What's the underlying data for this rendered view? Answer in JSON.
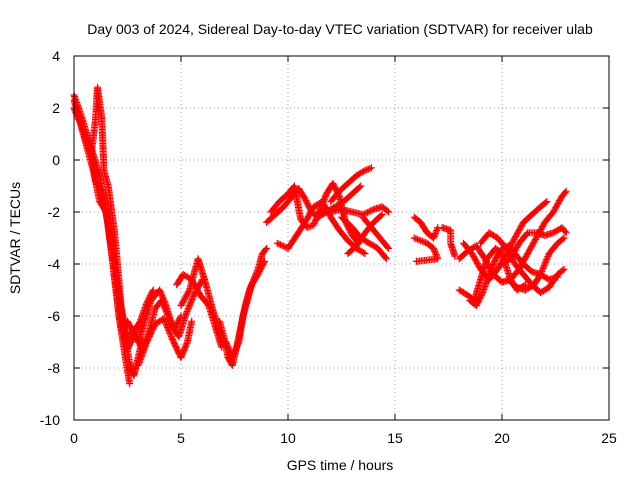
{
  "chart_data": {
    "type": "scatter",
    "title": "Day 003 of 2024, Sidereal Day-to-day VTEC variation (SDTVAR) for receiver ulab",
    "xlabel": "GPS time / hours",
    "ylabel": "SDTVAR / TECUs",
    "xlim": [
      0,
      25
    ],
    "ylim": [
      -10,
      4
    ],
    "xticks": [
      0,
      5,
      10,
      15,
      20,
      25
    ],
    "yticks": [
      -10,
      -8,
      -6,
      -4,
      -2,
      0,
      2,
      4
    ],
    "grid": true,
    "marker": "+",
    "color": "#ff0000",
    "series": [
      {
        "name": "SDTVAR",
        "tracks": [
          [
            [
              0.0,
              2.5
            ],
            [
              0.3,
              1.8
            ],
            [
              0.6,
              1.0
            ],
            [
              0.9,
              0.2
            ],
            [
              1.2,
              -0.6
            ],
            [
              1.5,
              -1.8
            ],
            [
              1.8,
              -3.5
            ],
            [
              2.1,
              -5.2
            ],
            [
              2.4,
              -6.8
            ],
            [
              2.6,
              -7.8
            ],
            [
              2.8,
              -8.3
            ],
            [
              3.0,
              -7.6
            ],
            [
              3.2,
              -6.9
            ]
          ],
          [
            [
              0.0,
              2.3
            ],
            [
              0.4,
              1.2
            ],
            [
              0.8,
              0.4
            ],
            [
              1.0,
              -0.8
            ],
            [
              1.3,
              -1.2
            ],
            [
              1.6,
              -2.5
            ],
            [
              1.9,
              -4.6
            ],
            [
              2.2,
              -6.5
            ],
            [
              2.5,
              -7.3
            ],
            [
              2.7,
              -6.9
            ],
            [
              3.0,
              -6.4
            ]
          ],
          [
            [
              0.5,
              0.9
            ],
            [
              0.8,
              0.2
            ],
            [
              1.0,
              1.5
            ],
            [
              1.1,
              2.8
            ],
            [
              1.3,
              1.6
            ],
            [
              1.4,
              -0.4
            ],
            [
              1.6,
              -1.0
            ],
            [
              1.9,
              -2.8
            ],
            [
              2.2,
              -5.6
            ],
            [
              2.5,
              -7.2
            ],
            [
              2.8,
              -6.6
            ],
            [
              3.1,
              -6.2
            ],
            [
              3.4,
              -5.5
            ],
            [
              3.7,
              -5.0
            ]
          ],
          [
            [
              0.0,
              2.0
            ],
            [
              0.3,
              1.4
            ],
            [
              0.6,
              0.5
            ],
            [
              0.9,
              -0.4
            ],
            [
              1.2,
              -1.6
            ],
            [
              1.5,
              -2.0
            ],
            [
              1.8,
              -3.8
            ],
            [
              2.1,
              -6.0
            ],
            [
              2.4,
              -7.6
            ],
            [
              2.6,
              -8.6
            ]
          ],
          [
            [
              2.5,
              -6.2
            ],
            [
              3.0,
              -7.0
            ],
            [
              3.3,
              -6.2
            ],
            [
              3.6,
              -5.4
            ],
            [
              4.0,
              -5.0
            ],
            [
              4.3,
              -5.6
            ],
            [
              4.6,
              -6.4
            ],
            [
              4.9,
              -6.8
            ],
            [
              5.2,
              -6.0
            ],
            [
              5.6,
              -5.2
            ],
            [
              6.0,
              -4.6
            ]
          ],
          [
            [
              2.6,
              -6.6
            ],
            [
              2.9,
              -6.8
            ],
            [
              3.2,
              -7.3
            ],
            [
              3.5,
              -6.6
            ],
            [
              3.8,
              -5.7
            ],
            [
              4.1,
              -5.4
            ],
            [
              4.4,
              -6.0
            ],
            [
              4.7,
              -6.5
            ],
            [
              5.0,
              -6.0
            ]
          ],
          [
            [
              3.0,
              -7.9
            ],
            [
              3.4,
              -7.0
            ],
            [
              3.8,
              -6.3
            ],
            [
              4.2,
              -6.1
            ],
            [
              4.6,
              -6.9
            ],
            [
              5.0,
              -7.6
            ],
            [
              5.3,
              -7.0
            ],
            [
              5.5,
              -6.2
            ]
          ],
          [
            [
              4.8,
              -4.8
            ],
            [
              5.1,
              -4.4
            ],
            [
              5.5,
              -4.6
            ],
            [
              5.9,
              -5.2
            ],
            [
              6.3,
              -5.6
            ],
            [
              6.6,
              -6.4
            ],
            [
              6.9,
              -7.2
            ]
          ],
          [
            [
              5.0,
              -5.6
            ],
            [
              5.4,
              -5.0
            ],
            [
              5.8,
              -3.8
            ],
            [
              6.1,
              -4.6
            ],
            [
              6.5,
              -5.8
            ],
            [
              6.8,
              -6.6
            ],
            [
              7.0,
              -7.0
            ]
          ],
          [
            [
              6.8,
              -6.2
            ],
            [
              7.0,
              -6.8
            ],
            [
              7.2,
              -7.6
            ],
            [
              7.4,
              -7.9
            ],
            [
              7.6,
              -7.2
            ],
            [
              7.8,
              -6.4
            ],
            [
              8.0,
              -5.6
            ],
            [
              8.2,
              -5.0
            ],
            [
              8.4,
              -4.6
            ],
            [
              8.6,
              -4.2
            ],
            [
              8.8,
              -3.6
            ],
            [
              9.0,
              -3.4
            ]
          ],
          [
            [
              7.1,
              -7.0
            ],
            [
              7.4,
              -7.6
            ],
            [
              7.7,
              -7.0
            ],
            [
              7.9,
              -6.0
            ],
            [
              8.1,
              -5.4
            ],
            [
              8.3,
              -4.8
            ],
            [
              8.6,
              -4.4
            ],
            [
              8.9,
              -3.9
            ]
          ],
          [
            [
              9.0,
              -2.4
            ],
            [
              9.4,
              -2.1
            ],
            [
              9.8,
              -1.8
            ],
            [
              10.2,
              -1.4
            ],
            [
              10.5,
              -1.1
            ],
            [
              10.8,
              -1.5
            ],
            [
              11.1,
              -2.0
            ],
            [
              11.4,
              -2.2
            ],
            [
              11.8,
              -2.0
            ],
            [
              12.2,
              -1.8
            ],
            [
              12.6,
              -1.6
            ],
            [
              13.0,
              -1.3
            ],
            [
              13.4,
              -1.0
            ]
          ],
          [
            [
              9.2,
              -2.0
            ],
            [
              9.6,
              -1.6
            ],
            [
              10.0,
              -1.3
            ],
            [
              10.3,
              -1.0
            ],
            [
              10.6,
              -2.3
            ],
            [
              10.9,
              -2.6
            ],
            [
              11.2,
              -2.5
            ],
            [
              11.5,
              -1.9
            ],
            [
              11.8,
              -1.3
            ],
            [
              12.1,
              -0.9
            ],
            [
              12.4,
              -1.4
            ],
            [
              12.7,
              -2.4
            ],
            [
              13.0,
              -2.9
            ],
            [
              13.3,
              -3.2
            ]
          ],
          [
            [
              9.5,
              -3.2
            ],
            [
              10.0,
              -3.4
            ],
            [
              10.4,
              -2.9
            ],
            [
              10.8,
              -2.4
            ],
            [
              11.2,
              -1.8
            ],
            [
              11.6,
              -1.6
            ],
            [
              12.0,
              -2.2
            ],
            [
              12.4,
              -2.7
            ],
            [
              12.8,
              -3.1
            ],
            [
              13.2,
              -3.4
            ],
            [
              13.6,
              -3.6
            ]
          ],
          [
            [
              11.5,
              -2.0
            ],
            [
              12.0,
              -2.0
            ],
            [
              12.5,
              -1.9
            ],
            [
              13.0,
              -2.0
            ],
            [
              13.5,
              -2.1
            ],
            [
              14.0,
              -1.9
            ],
            [
              14.4,
              -1.8
            ],
            [
              14.7,
              -2.0
            ]
          ],
          [
            [
              12.0,
              -1.6
            ],
            [
              12.4,
              -1.2
            ],
            [
              12.8,
              -0.9
            ],
            [
              13.2,
              -0.6
            ],
            [
              13.6,
              -0.4
            ],
            [
              13.9,
              -0.3
            ]
          ],
          [
            [
              12.5,
              -2.2
            ],
            [
              13.0,
              -2.6
            ],
            [
              13.4,
              -3.0
            ],
            [
              13.8,
              -3.2
            ],
            [
              14.2,
              -3.4
            ],
            [
              14.6,
              -3.8
            ]
          ],
          [
            [
              13.5,
              -2.2
            ],
            [
              13.9,
              -2.6
            ],
            [
              14.3,
              -3.0
            ],
            [
              14.7,
              -3.4
            ]
          ],
          [
            [
              12.8,
              -3.6
            ],
            [
              13.2,
              -3.3
            ],
            [
              13.6,
              -2.8
            ],
            [
              14.0,
              -2.4
            ],
            [
              14.4,
              -2.1
            ]
          ],
          [
            [
              15.9,
              -2.2
            ],
            [
              16.2,
              -2.4
            ],
            [
              16.5,
              -2.8
            ],
            [
              16.8,
              -3.0
            ],
            [
              17.0,
              -2.6
            ]
          ],
          [
            [
              15.9,
              -3.0
            ],
            [
              16.2,
              -3.1
            ],
            [
              16.5,
              -3.2
            ],
            [
              16.8,
              -3.4
            ],
            [
              17.0,
              -3.8
            ],
            [
              16.0,
              -3.9
            ]
          ],
          [
            [
              17.2,
              -2.6
            ],
            [
              17.6,
              -2.7
            ],
            [
              17.6,
              -3.2
            ],
            [
              17.8,
              -3.7
            ]
          ],
          [
            [
              18.0,
              -3.8
            ],
            [
              18.4,
              -3.5
            ],
            [
              18.8,
              -3.3
            ],
            [
              19.2,
              -3.8
            ],
            [
              19.6,
              -4.4
            ],
            [
              20.0,
              -4.7
            ],
            [
              20.4,
              -4.6
            ],
            [
              20.8,
              -4.2
            ],
            [
              21.2,
              -3.6
            ],
            [
              21.6,
              -3.0
            ],
            [
              22.0,
              -2.4
            ],
            [
              22.4,
              -2.0
            ],
            [
              22.8,
              -1.4
            ],
            [
              23.0,
              -1.2
            ]
          ],
          [
            [
              18.2,
              -3.2
            ],
            [
              18.6,
              -3.6
            ],
            [
              19.0,
              -4.2
            ],
            [
              19.4,
              -4.6
            ],
            [
              19.8,
              -4.2
            ],
            [
              20.2,
              -3.6
            ],
            [
              20.6,
              -3.0
            ],
            [
              21.0,
              -2.4
            ],
            [
              21.4,
              -2.1
            ],
            [
              21.8,
              -1.8
            ],
            [
              22.1,
              -1.6
            ]
          ],
          [
            [
              18.5,
              -5.4
            ],
            [
              18.8,
              -5.6
            ],
            [
              19.1,
              -5.1
            ],
            [
              19.4,
              -4.4
            ],
            [
              19.7,
              -3.8
            ],
            [
              20.0,
              -3.4
            ],
            [
              20.3,
              -3.3
            ],
            [
              20.6,
              -3.6
            ],
            [
              21.0,
              -4.0
            ],
            [
              21.4,
              -4.3
            ],
            [
              21.8,
              -4.4
            ],
            [
              22.2,
              -4.6
            ],
            [
              22.6,
              -4.5
            ]
          ],
          [
            [
              19.0,
              -3.2
            ],
            [
              19.4,
              -2.8
            ],
            [
              19.8,
              -3.0
            ],
            [
              20.2,
              -3.4
            ],
            [
              20.6,
              -4.0
            ],
            [
              21.0,
              -4.4
            ],
            [
              21.4,
              -4.8
            ],
            [
              21.8,
              -5.1
            ],
            [
              22.2,
              -4.9
            ],
            [
              22.6,
              -4.4
            ],
            [
              22.9,
              -4.2
            ]
          ],
          [
            [
              20.0,
              -4.0
            ],
            [
              20.4,
              -3.8
            ],
            [
              20.8,
              -3.2
            ],
            [
              21.2,
              -2.8
            ],
            [
              21.6,
              -2.8
            ],
            [
              22.0,
              -2.9
            ],
            [
              22.4,
              -2.8
            ],
            [
              22.8,
              -2.6
            ],
            [
              23.0,
              -2.8
            ]
          ],
          [
            [
              18.0,
              -5.0
            ],
            [
              18.4,
              -5.2
            ],
            [
              18.7,
              -5.4
            ],
            [
              19.0,
              -4.6
            ],
            [
              19.3,
              -3.8
            ],
            [
              19.7,
              -3.4
            ],
            [
              20.0,
              -3.6
            ],
            [
              20.4,
              -4.6
            ],
            [
              20.7,
              -5.0
            ],
            [
              21.1,
              -4.8
            ]
          ],
          [
            [
              20.3,
              -4.6
            ],
            [
              20.7,
              -4.9
            ],
            [
              21.1,
              -5.0
            ],
            [
              21.5,
              -4.8
            ],
            [
              21.8,
              -4.4
            ],
            [
              22.2,
              -3.6
            ],
            [
              22.6,
              -3.2
            ],
            [
              22.9,
              -3.0
            ]
          ]
        ]
      }
    ]
  }
}
